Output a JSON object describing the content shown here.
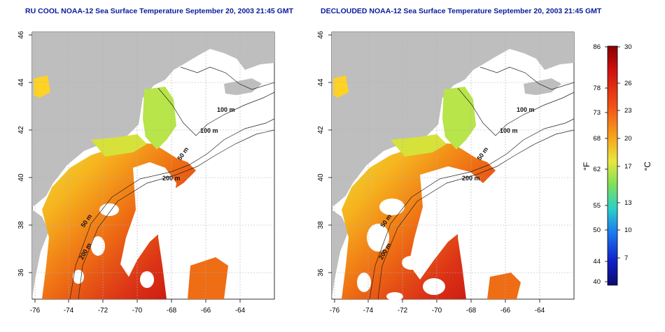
{
  "panels": [
    {
      "title": "RU COOL NOAA-12 Sea Surface Temperature September 20, 2003 21:45 GMT",
      "x_ticks": [
        "-76",
        "-74",
        "-72",
        "-70",
        "-68",
        "-66",
        "-64"
      ],
      "y_ticks": [
        "36",
        "38",
        "40",
        "42",
        "44",
        "46"
      ],
      "contour_labels": [
        "100 m",
        "100 m",
        "50 m",
        "200 m",
        "50 m",
        "200 m"
      ]
    },
    {
      "title": "DECLOUDED NOAA-12 Sea Surface Temperature September 20, 2003 21:45 GMT",
      "x_ticks": [
        "-76",
        "-74",
        "-72",
        "-70",
        "-68",
        "-66",
        "-64"
      ],
      "y_ticks": [
        "36",
        "38",
        "40",
        "42",
        "44",
        "46"
      ],
      "contour_labels": [
        "100 m",
        "100 m",
        "50 m",
        "200 m",
        "50 m",
        "200 m"
      ]
    }
  ],
  "colorbar": {
    "f_label": "°F",
    "c_label": "°C",
    "f_ticks": [
      "86",
      "78",
      "73",
      "68",
      "62",
      "55",
      "50",
      "44",
      "40"
    ],
    "c_ticks": [
      "30",
      "26",
      "23",
      "20",
      "17",
      "13",
      "10",
      "7"
    ]
  },
  "colors": {
    "land": "#bebebe",
    "cloud": "#ffffff",
    "title": "#0b1a9c",
    "sst_warm": "#cc1010",
    "sst_mid": "#f28a1c",
    "sst_cool": "#b8e64a"
  }
}
